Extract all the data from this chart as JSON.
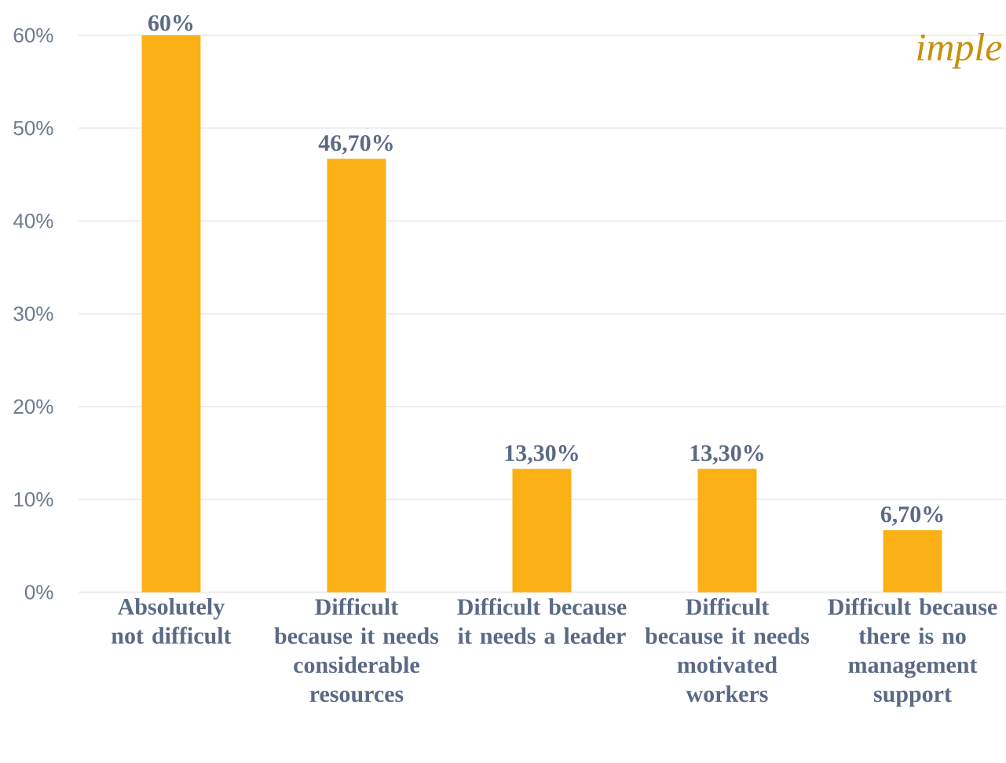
{
  "chart_data": {
    "type": "bar",
    "title": "imple",
    "categories": [
      "Absolutely not difficult",
      "Difficult because it needs considerable resources",
      "Difficult because it needs a leader",
      "Difficult because it needs motivated workers",
      "Difficult because there is no management support"
    ],
    "values": [
      60,
      46.7,
      13.3,
      13.3,
      6.7
    ],
    "value_labels": [
      "60%",
      "46,70%",
      "13,30%",
      "13,30%",
      "6,70%"
    ],
    "color": "#fbb015",
    "ylim": [
      0,
      60
    ],
    "yticks": [
      {
        "value": 0,
        "label": "0%"
      },
      {
        "value": 10,
        "label": "10%"
      },
      {
        "value": 20,
        "label": "20%"
      },
      {
        "value": 30,
        "label": "30%"
      },
      {
        "value": 40,
        "label": "40%"
      },
      {
        "value": 50,
        "label": "50%"
      },
      {
        "value": 60,
        "label": "60%"
      }
    ],
    "grid": "y"
  }
}
